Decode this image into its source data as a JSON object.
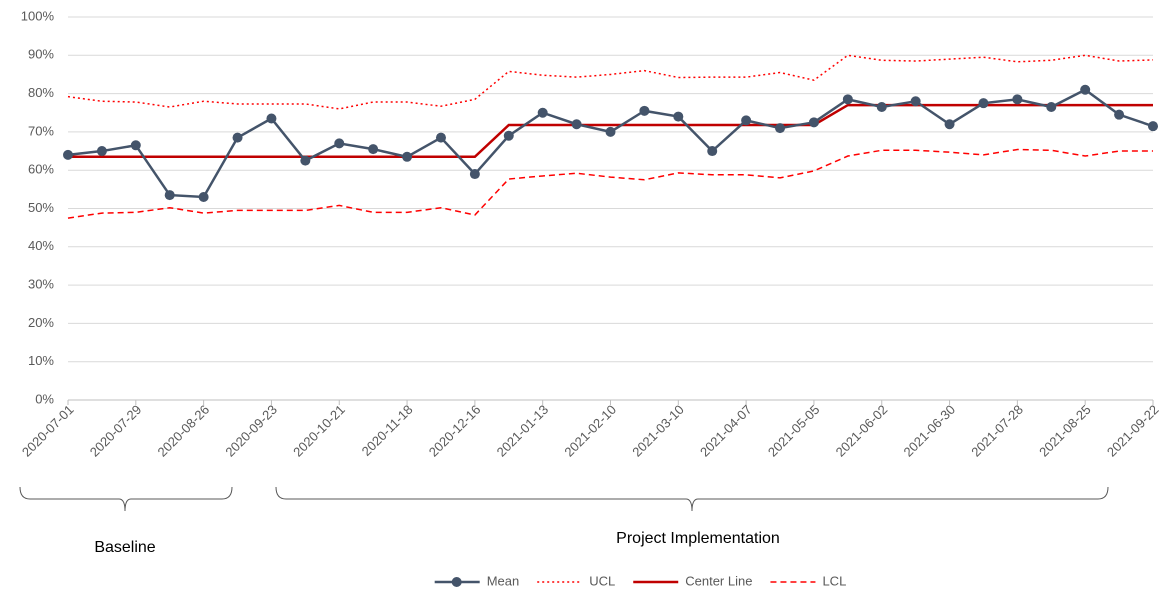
{
  "chart_data": {
    "type": "line",
    "categories": [
      "2020-07-01",
      null,
      "2020-07-29",
      null,
      "2020-08-26",
      null,
      "2020-09-23",
      null,
      "2020-10-21",
      null,
      "2020-11-18",
      null,
      "2020-12-16",
      null,
      "2021-01-13",
      null,
      "2021-02-10",
      null,
      "2021-03-10",
      null,
      "2021-04-07",
      null,
      "2021-05-05",
      null,
      "2021-06-02",
      null,
      "2021-06-30",
      null,
      "2021-07-28",
      null,
      "2021-08-25",
      null,
      "2021-09-22"
    ],
    "series": [
      {
        "name": "Mean",
        "color": "#44546a",
        "dash": "solid",
        "marker": "circle",
        "values": [
          64,
          65,
          66.5,
          53.5,
          53,
          68.5,
          73.5,
          62.5,
          67,
          65.5,
          63.5,
          68.5,
          59,
          69,
          75,
          72,
          70,
          75.5,
          74,
          65,
          73,
          71,
          72.5,
          78.5,
          76.5,
          78,
          72,
          77.5,
          78.5,
          76.5,
          81,
          74.5,
          71.5
        ]
      },
      {
        "name": "UCL",
        "color": "#ff0000",
        "dash": "dotted",
        "values": [
          79.2,
          78,
          77.8,
          76.5,
          78,
          77.3,
          77.3,
          77.3,
          76,
          77.8,
          77.8,
          76.7,
          78.5,
          85.8,
          84.8,
          84.3,
          85,
          86,
          84.2,
          84.3,
          84.3,
          85.5,
          83.5,
          90,
          88.7,
          88.5,
          89,
          89.5,
          88.3,
          88.7,
          90,
          88.5,
          88.8
        ]
      },
      {
        "name": "Center Line",
        "color": "#c00000",
        "dash": "solid",
        "values": [
          63.5,
          63.5,
          63.5,
          63.5,
          63.5,
          63.5,
          63.5,
          63.5,
          63.5,
          63.5,
          63.5,
          63.5,
          63.5,
          71.8,
          71.8,
          71.8,
          71.8,
          71.8,
          71.8,
          71.8,
          71.8,
          71.8,
          71.8,
          77,
          77,
          77,
          77,
          77,
          77,
          77,
          77,
          77,
          77
        ]
      },
      {
        "name": "LCL",
        "color": "#ff0000",
        "dash": "dashed",
        "values": [
          47.5,
          48.8,
          49,
          50.2,
          48.8,
          49.5,
          49.5,
          49.5,
          50.8,
          49,
          49,
          50.2,
          48.3,
          57.7,
          58.5,
          59.2,
          58.2,
          57.5,
          59.3,
          58.8,
          58.8,
          58,
          59.8,
          63.7,
          65.2,
          65.2,
          64.7,
          64,
          65.4,
          65.2,
          63.7,
          65,
          65
        ]
      }
    ],
    "ylim": [
      0,
      100
    ],
    "yticks": [
      {
        "value": 0,
        "label": "0%"
      },
      {
        "value": 10,
        "label": "10%"
      },
      {
        "value": 20,
        "label": "20%"
      },
      {
        "value": 30,
        "label": "30%"
      },
      {
        "value": 40,
        "label": "40%"
      },
      {
        "value": 50,
        "label": "50%"
      },
      {
        "value": 60,
        "label": "60%"
      },
      {
        "value": 70,
        "label": "70%"
      },
      {
        "value": 80,
        "label": "80%"
      },
      {
        "value": 90,
        "label": "90%"
      },
      {
        "value": 100,
        "label": "100%"
      }
    ],
    "grid": true,
    "legend": "bottom",
    "annotations": [
      {
        "text": "Baseline"
      },
      {
        "text": "Project Implementation"
      }
    ]
  }
}
